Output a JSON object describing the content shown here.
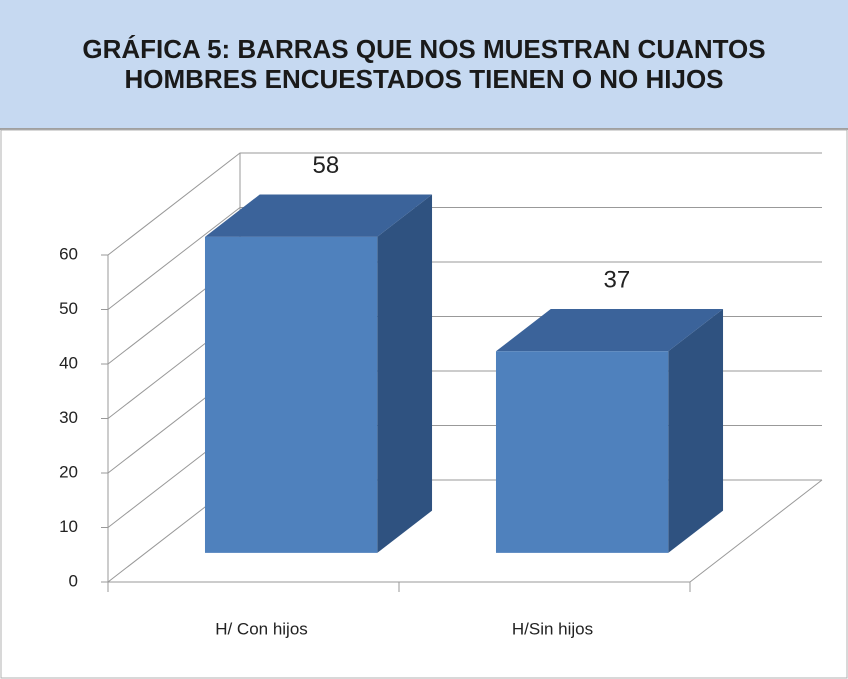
{
  "chart_data": {
    "type": "bar3d",
    "title": "GRÁFICA 5: BARRAS QUE NOS MUESTRAN CUANTOS  HOMBRES ENCUESTADOS TIENEN O NO HIJOS",
    "categories": [
      "H/ Con hijos",
      "H/Sin hijos"
    ],
    "values": [
      58,
      37
    ],
    "color": "#4f81bd",
    "ylim": [
      0,
      60
    ],
    "yticks": [
      0,
      10,
      20,
      30,
      40,
      50,
      60
    ],
    "grid": true
  }
}
